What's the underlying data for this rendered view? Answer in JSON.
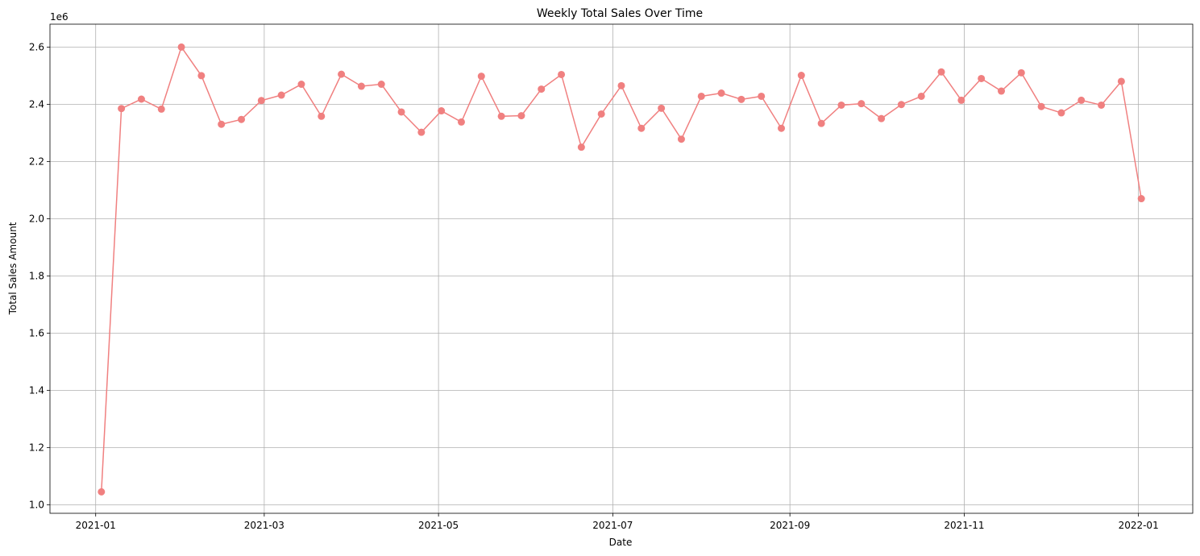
{
  "chart_data": {
    "type": "line",
    "title": "Weekly Total Sales Over Time",
    "xlabel": "Date",
    "ylabel": "Total Sales Amount",
    "y_offset_label": "1e6",
    "grid": true,
    "series_color": "#f08080",
    "x_ticks": [
      "2021-01",
      "2021-03",
      "2021-05",
      "2021-07",
      "2021-09",
      "2021-11",
      "2022-01"
    ],
    "y_ticks": [
      1.0,
      1.2,
      1.4,
      1.6,
      1.8,
      2.0,
      2.2,
      2.4,
      2.6
    ],
    "ylim": [
      0.97,
      2.68
    ],
    "xlim": [
      "2020-12-16",
      "2022-01-20"
    ],
    "series": [
      {
        "x": [
          "2021-01-03",
          "2021-01-10",
          "2021-01-17",
          "2021-01-24",
          "2021-01-31",
          "2021-02-07",
          "2021-02-14",
          "2021-02-21",
          "2021-02-28",
          "2021-03-07",
          "2021-03-14",
          "2021-03-21",
          "2021-03-28",
          "2021-04-04",
          "2021-04-11",
          "2021-04-18",
          "2021-04-25",
          "2021-05-02",
          "2021-05-09",
          "2021-05-16",
          "2021-05-23",
          "2021-05-30",
          "2021-06-06",
          "2021-06-13",
          "2021-06-20",
          "2021-06-27",
          "2021-07-04",
          "2021-07-11",
          "2021-07-18",
          "2021-07-25",
          "2021-08-01",
          "2021-08-08",
          "2021-08-15",
          "2021-08-22",
          "2021-08-29",
          "2021-09-05",
          "2021-09-12",
          "2021-09-19",
          "2021-09-26",
          "2021-10-03",
          "2021-10-10",
          "2021-10-17",
          "2021-10-24",
          "2021-10-31",
          "2021-11-07",
          "2021-11-14",
          "2021-11-21",
          "2021-11-28",
          "2021-12-05",
          "2021-12-12",
          "2021-12-19",
          "2021-12-26",
          "2022-01-02"
        ],
        "values": [
          1.045,
          2.385,
          2.418,
          2.383,
          2.6,
          2.5,
          2.33,
          2.347,
          2.413,
          2.432,
          2.47,
          2.358,
          2.505,
          2.463,
          2.47,
          2.373,
          2.302,
          2.377,
          2.338,
          2.498,
          2.358,
          2.36,
          2.453,
          2.504,
          2.25,
          2.366,
          2.465,
          2.316,
          2.386,
          2.278,
          2.428,
          2.439,
          2.417,
          2.428,
          2.316,
          2.501,
          2.333,
          2.397,
          2.402,
          2.35,
          2.399,
          2.428,
          2.513,
          2.414,
          2.49,
          2.446,
          2.51,
          2.392,
          2.37,
          2.414,
          2.397,
          2.48,
          2.07
        ]
      }
    ]
  }
}
